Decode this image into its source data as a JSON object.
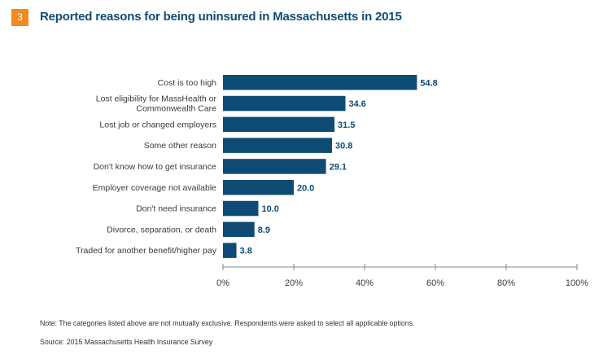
{
  "figure": {
    "number": "3",
    "title": "Reported reasons for being uninsured in Massachusetts in 2015",
    "note": "Note: The categories listed above are not mutually exclusive. Respondents were asked to select all applicable options.",
    "source": "Source: 2015 Massachusetts Health Insurance Survey"
  },
  "colors": {
    "bar": "#0f4c75",
    "badge": "#f08c1e",
    "axis": "#888888"
  },
  "chart_data": {
    "type": "bar",
    "orientation": "horizontal",
    "categories": [
      [
        "Cost is too high"
      ],
      [
        "Lost eligibility for MassHealth or",
        "Commonwealth Care"
      ],
      [
        "Lost job or changed employers"
      ],
      [
        "Some other reason"
      ],
      [
        "Don't know how to get insurance"
      ],
      [
        "Employer coverage not available"
      ],
      [
        "Don't need insurance"
      ],
      [
        "Divorce, separation, or death"
      ],
      [
        "Traded for another benefit/higher pay"
      ]
    ],
    "values": [
      54.8,
      34.6,
      31.5,
      30.8,
      29.1,
      20.0,
      10.0,
      8.9,
      3.8
    ],
    "value_labels": [
      "54.8",
      "34.6",
      "31.5",
      "30.8",
      "29.1",
      "20.0",
      "10.0",
      "8.9",
      "3.8"
    ],
    "xlim": [
      0,
      100
    ],
    "x_ticks": [
      0,
      20,
      40,
      60,
      80,
      100
    ],
    "x_tick_labels": [
      "0%",
      "20%",
      "40%",
      "60%",
      "80%",
      "100%"
    ],
    "grid": false,
    "legend": "none"
  }
}
